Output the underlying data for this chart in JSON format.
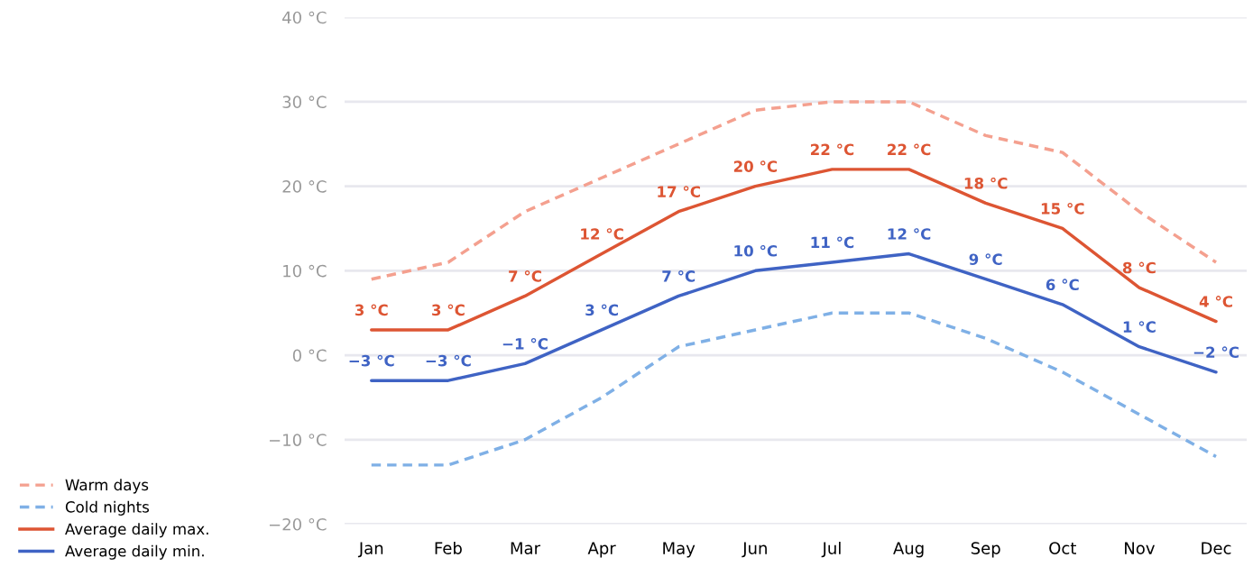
{
  "chart_data": {
    "type": "line",
    "categories": [
      "Jan",
      "Feb",
      "Mar",
      "Apr",
      "May",
      "Jun",
      "Jul",
      "Aug",
      "Sep",
      "Oct",
      "Nov",
      "Dec"
    ],
    "series": [
      {
        "name": "Warm days",
        "color": "#f4a08f",
        "line_style": "dashed",
        "values": [
          9,
          11,
          17,
          21,
          25,
          29,
          30,
          30,
          26,
          24,
          17,
          11
        ]
      },
      {
        "name": "Cold nights",
        "color": "#7fb0e6",
        "line_style": "dashed",
        "values": [
          -13,
          -13,
          -10,
          -5,
          1,
          3,
          5,
          5,
          2,
          -2,
          -7,
          -12
        ]
      },
      {
        "name": "Average daily max.",
        "color": "#dd5533",
        "line_style": "solid",
        "values": [
          3,
          3,
          7,
          12,
          17,
          20,
          22,
          22,
          18,
          15,
          8,
          4
        ],
        "value_labels": [
          "3 °C",
          "3 °C",
          "7 °C",
          "12 °C",
          "17 °C",
          "20 °C",
          "22 °C",
          "22 °C",
          "18 °C",
          "15 °C",
          "8 °C",
          "4 °C"
        ]
      },
      {
        "name": "Average daily min.",
        "color": "#3f63c4",
        "line_style": "solid",
        "values": [
          -3,
          -3,
          -1,
          3,
          7,
          10,
          11,
          12,
          9,
          6,
          1,
          -2
        ],
        "value_labels": [
          "−3 °C",
          "−3 °C",
          "−1 °C",
          "3 °C",
          "7 °C",
          "10 °C",
          "11 °C",
          "12 °C",
          "9 °C",
          "6 °C",
          "1 °C",
          "−2 °C"
        ]
      }
    ],
    "ylim": [
      -20,
      40
    ],
    "yticks": [
      {
        "value": -20,
        "label": "−20 °C"
      },
      {
        "value": -10,
        "label": "−10 °C"
      },
      {
        "value": 0,
        "label": "0 °C"
      },
      {
        "value": 10,
        "label": "10 °C"
      },
      {
        "value": 20,
        "label": "20 °C"
      },
      {
        "value": 30,
        "label": "30 °C"
      },
      {
        "value": 40,
        "label": "40 °C"
      }
    ],
    "grid": "y",
    "legend": "bottom left",
    "marker": "none"
  }
}
